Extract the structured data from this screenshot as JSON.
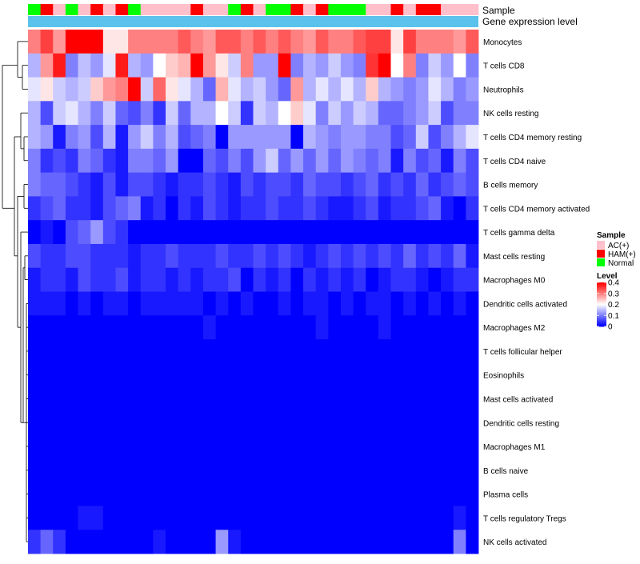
{
  "chart_data": {
    "type": "heatmap",
    "title": "",
    "annotation_labels": {
      "sample": "Sample",
      "expression": "Gene expression level"
    },
    "sample_groups": [
      "Normal",
      "HAM(+)",
      "AC(+)",
      "Normal",
      "AC(+)",
      "HAM(+)",
      "AC(+)",
      "HAM(+)",
      "Normal",
      "AC(+)",
      "AC(+)",
      "AC(+)",
      "AC(+)",
      "HAM(+)",
      "AC(+)",
      "AC(+)",
      "Normal",
      "HAM(+)",
      "AC(+)",
      "Normal",
      "Normal",
      "HAM(+)",
      "AC(+)",
      "HAM(+)",
      "Normal",
      "Normal",
      "Normal",
      "AC(+)",
      "AC(+)",
      "HAM(+)",
      "AC(+)",
      "HAM(+)",
      "HAM(+)",
      "AC(+)",
      "AC(+)",
      "AC(+)"
    ],
    "rows": [
      "Monocytes",
      "T cells CD8",
      "Neutrophils",
      "NK cells resting",
      "T cells CD4 memory resting",
      "T cells CD4 naive",
      "B cells memory",
      "T cells CD4 memory activated",
      "T cells gamma delta",
      "Mast cells resting",
      "Macrophages M0",
      "Dendritic cells activated",
      "Macrophages M2",
      "T cells follicular helper",
      "Eosinophils",
      "Mast cells activated",
      "Dendritic cells resting",
      "Macrophages M1",
      "B cells naive",
      "Plasma cells",
      "T cells regulatory  Tregs",
      "NK cells activated"
    ],
    "values": [
      [
        0.3,
        0.35,
        0.28,
        0.4,
        0.4,
        0.4,
        0.22,
        0.22,
        0.3,
        0.3,
        0.3,
        0.3,
        0.33,
        0.3,
        0.28,
        0.33,
        0.33,
        0.3,
        0.33,
        0.3,
        0.33,
        0.3,
        0.28,
        0.33,
        0.3,
        0.3,
        0.33,
        0.35,
        0.35,
        0.22,
        0.35,
        0.3,
        0.3,
        0.3,
        0.28,
        0.33
      ],
      [
        0.14,
        0.28,
        0.38,
        0.1,
        0.15,
        0.12,
        0.18,
        0.38,
        0.14,
        0.12,
        0.2,
        0.24,
        0.26,
        0.4,
        0.28,
        0.22,
        0.16,
        0.3,
        0.12,
        0.12,
        0.4,
        0.1,
        0.14,
        0.12,
        0.16,
        0.12,
        0.1,
        0.36,
        0.4,
        0.2,
        0.3,
        0.1,
        0.16,
        0.12,
        0.2,
        0.1
      ],
      [
        0.18,
        0.22,
        0.16,
        0.14,
        0.16,
        0.24,
        0.28,
        0.3,
        0.4,
        0.16,
        0.32,
        0.22,
        0.18,
        0.14,
        0.08,
        0.26,
        0.18,
        0.14,
        0.16,
        0.12,
        0.08,
        0.28,
        0.14,
        0.18,
        0.14,
        0.18,
        0.14,
        0.24,
        0.14,
        0.12,
        0.1,
        0.12,
        0.18,
        0.14,
        0.1,
        0.12
      ],
      [
        0.14,
        0.06,
        0.16,
        0.18,
        0.14,
        0.1,
        0.16,
        0.08,
        0.06,
        0.1,
        0.04,
        0.16,
        0.08,
        0.14,
        0.14,
        0.2,
        0.16,
        0.04,
        0.16,
        0.14,
        0.2,
        0.24,
        0.18,
        0.1,
        0.16,
        0.12,
        0.16,
        0.14,
        0.08,
        0.08,
        0.1,
        0.12,
        0.16,
        0.06,
        0.1,
        0.1
      ],
      [
        0.14,
        0.12,
        0.02,
        0.1,
        0.12,
        0.06,
        0.14,
        0.02,
        0.12,
        0.16,
        0.1,
        0.14,
        0.06,
        0.08,
        0.1,
        0.0,
        0.12,
        0.12,
        0.12,
        0.12,
        0.12,
        0.0,
        0.14,
        0.12,
        0.1,
        0.12,
        0.12,
        0.1,
        0.1,
        0.06,
        0.08,
        0.16,
        0.06,
        0.1,
        0.14,
        0.18
      ],
      [
        0.1,
        0.04,
        0.06,
        0.04,
        0.1,
        0.08,
        0.04,
        0.02,
        0.1,
        0.1,
        0.08,
        0.12,
        0.0,
        0.0,
        0.08,
        0.06,
        0.1,
        0.06,
        0.12,
        0.16,
        0.08,
        0.12,
        0.08,
        0.12,
        0.08,
        0.12,
        0.1,
        0.08,
        0.1,
        0.02,
        0.1,
        0.06,
        0.08,
        0.02,
        0.1,
        0.06
      ],
      [
        0.1,
        0.08,
        0.08,
        0.06,
        0.04,
        0.02,
        0.06,
        0.02,
        0.06,
        0.06,
        0.04,
        0.02,
        0.04,
        0.04,
        0.06,
        0.04,
        0.02,
        0.06,
        0.04,
        0.06,
        0.06,
        0.04,
        0.08,
        0.06,
        0.06,
        0.04,
        0.06,
        0.08,
        0.04,
        0.06,
        0.04,
        0.08,
        0.04,
        0.06,
        0.08,
        0.06
      ],
      [
        0.04,
        0.06,
        0.08,
        0.04,
        0.04,
        0.02,
        0.06,
        0.08,
        0.1,
        0.02,
        0.04,
        0.0,
        0.04,
        0.02,
        0.06,
        0.04,
        0.02,
        0.04,
        0.04,
        0.06,
        0.04,
        0.04,
        0.06,
        0.04,
        0.02,
        0.02,
        0.04,
        0.06,
        0.02,
        0.04,
        0.04,
        0.06,
        0.08,
        0.02,
        0.0,
        0.04
      ],
      [
        0.0,
        0.02,
        0.0,
        0.06,
        0.08,
        0.12,
        0.06,
        0.04,
        0.0,
        0.0,
        0.0,
        0.0,
        0.0,
        0.0,
        0.0,
        0.0,
        0.0,
        0.0,
        0.0,
        0.0,
        0.0,
        0.0,
        0.0,
        0.0,
        0.0,
        0.0,
        0.0,
        0.0,
        0.0,
        0.0,
        0.0,
        0.0,
        0.0,
        0.0,
        0.0,
        0.0
      ],
      [
        0.06,
        0.04,
        0.04,
        0.06,
        0.06,
        0.04,
        0.04,
        0.04,
        0.02,
        0.04,
        0.04,
        0.06,
        0.04,
        0.04,
        0.04,
        0.06,
        0.04,
        0.04,
        0.06,
        0.04,
        0.06,
        0.04,
        0.02,
        0.04,
        0.06,
        0.04,
        0.06,
        0.04,
        0.06,
        0.04,
        0.08,
        0.04,
        0.06,
        0.04,
        0.08,
        0.02
      ],
      [
        0.02,
        0.04,
        0.04,
        0.02,
        0.06,
        0.04,
        0.04,
        0.06,
        0.02,
        0.04,
        0.04,
        0.02,
        0.04,
        0.02,
        0.04,
        0.04,
        0.06,
        0.0,
        0.04,
        0.02,
        0.04,
        0.0,
        0.04,
        0.02,
        0.04,
        0.02,
        0.04,
        0.0,
        0.02,
        0.04,
        0.04,
        0.02,
        0.0,
        0.02,
        0.04,
        0.04
      ],
      [
        0.02,
        0.02,
        0.02,
        0.0,
        0.02,
        0.0,
        0.02,
        0.02,
        0.0,
        0.02,
        0.02,
        0.02,
        0.02,
        0.02,
        0.0,
        0.02,
        0.0,
        0.02,
        0.0,
        0.0,
        0.02,
        0.0,
        0.02,
        0.02,
        0.0,
        0.02,
        0.0,
        0.02,
        0.02,
        0.0,
        0.02,
        0.0,
        0.02,
        0.0,
        0.02,
        0.0
      ],
      [
        0.0,
        0.0,
        0.0,
        0.0,
        0.0,
        0.0,
        0.0,
        0.0,
        0.0,
        0.0,
        0.0,
        0.0,
        0.0,
        0.0,
        0.02,
        0.0,
        0.0,
        0.0,
        0.0,
        0.0,
        0.0,
        0.0,
        0.0,
        0.02,
        0.0,
        0.0,
        0.0,
        0.0,
        0.02,
        0.0,
        0.0,
        0.0,
        0.0,
        0.0,
        0.0,
        0.0
      ],
      [
        0,
        0,
        0,
        0,
        0,
        0,
        0,
        0,
        0,
        0,
        0,
        0,
        0,
        0,
        0,
        0,
        0,
        0,
        0,
        0,
        0,
        0,
        0,
        0,
        0,
        0,
        0,
        0,
        0,
        0,
        0,
        0,
        0,
        0,
        0,
        0
      ],
      [
        0,
        0,
        0,
        0,
        0,
        0,
        0,
        0,
        0,
        0,
        0,
        0,
        0,
        0,
        0,
        0,
        0,
        0,
        0,
        0,
        0,
        0,
        0,
        0,
        0,
        0,
        0,
        0,
        0,
        0,
        0,
        0,
        0,
        0,
        0,
        0
      ],
      [
        0,
        0,
        0,
        0,
        0,
        0,
        0,
        0,
        0,
        0,
        0,
        0,
        0,
        0,
        0,
        0,
        0,
        0,
        0,
        0,
        0,
        0,
        0,
        0,
        0,
        0,
        0,
        0,
        0,
        0,
        0,
        0,
        0,
        0,
        0,
        0
      ],
      [
        0,
        0,
        0,
        0,
        0,
        0,
        0,
        0,
        0,
        0,
        0,
        0,
        0,
        0,
        0,
        0,
        0,
        0,
        0,
        0,
        0,
        0,
        0,
        0,
        0,
        0,
        0,
        0,
        0,
        0,
        0,
        0,
        0,
        0,
        0,
        0
      ],
      [
        0,
        0,
        0,
        0,
        0,
        0,
        0,
        0,
        0,
        0,
        0,
        0,
        0,
        0,
        0,
        0,
        0,
        0,
        0,
        0,
        0,
        0,
        0,
        0,
        0,
        0,
        0,
        0,
        0,
        0,
        0,
        0,
        0,
        0,
        0,
        0
      ],
      [
        0,
        0,
        0,
        0,
        0,
        0,
        0,
        0,
        0,
        0,
        0,
        0,
        0,
        0,
        0,
        0,
        0,
        0,
        0,
        0,
        0,
        0,
        0,
        0,
        0,
        0,
        0,
        0,
        0,
        0,
        0,
        0,
        0,
        0,
        0,
        0
      ],
      [
        0,
        0,
        0,
        0,
        0,
        0,
        0,
        0,
        0,
        0,
        0,
        0,
        0,
        0,
        0,
        0,
        0,
        0,
        0,
        0,
        0,
        0,
        0,
        0,
        0,
        0,
        0,
        0,
        0,
        0,
        0,
        0,
        0,
        0,
        0,
        0
      ],
      [
        0.0,
        0.0,
        0.0,
        0.0,
        0.02,
        0.02,
        0.0,
        0.0,
        0.0,
        0.0,
        0.0,
        0.0,
        0.0,
        0.0,
        0.0,
        0.0,
        0.0,
        0.0,
        0.0,
        0.0,
        0.0,
        0.0,
        0.0,
        0.0,
        0.0,
        0.0,
        0.0,
        0.0,
        0.0,
        0.0,
        0.0,
        0.0,
        0.0,
        0.0,
        0.02,
        0.0
      ],
      [
        0.04,
        0.08,
        0.04,
        0.0,
        0.0,
        0.0,
        0.0,
        0.0,
        0.0,
        0.0,
        0.02,
        0.0,
        0.0,
        0.0,
        0.0,
        0.12,
        0.02,
        0.0,
        0.0,
        0.0,
        0.0,
        0.0,
        0.0,
        0.0,
        0.0,
        0.0,
        0.0,
        0.0,
        0.0,
        0.0,
        0.0,
        0.0,
        0.0,
        0.0,
        0.1,
        0.0
      ]
    ],
    "color_scale": {
      "min": 0,
      "max": 0.4,
      "low": "#0000ff",
      "mid": "#ffffff",
      "high": "#ff0000",
      "mid_value": 0.2
    },
    "sample_colors": {
      "AC(+)": "#ffc0cb",
      "HAM(+)": "#ff0000",
      "Normal": "#00ff00"
    },
    "expression_bar_color": "#5bc2eb",
    "legend": {
      "sample_title": "Sample",
      "sample_entries": [
        "AC(+)",
        "HAM(+)",
        "Normal"
      ],
      "level_title": "Level",
      "level_ticks": [
        "0.4",
        "0.3",
        "0.2",
        "0.1",
        "0"
      ],
      "level_tick_values": [
        0.4,
        0.3,
        0.2,
        0.1,
        0
      ]
    }
  }
}
